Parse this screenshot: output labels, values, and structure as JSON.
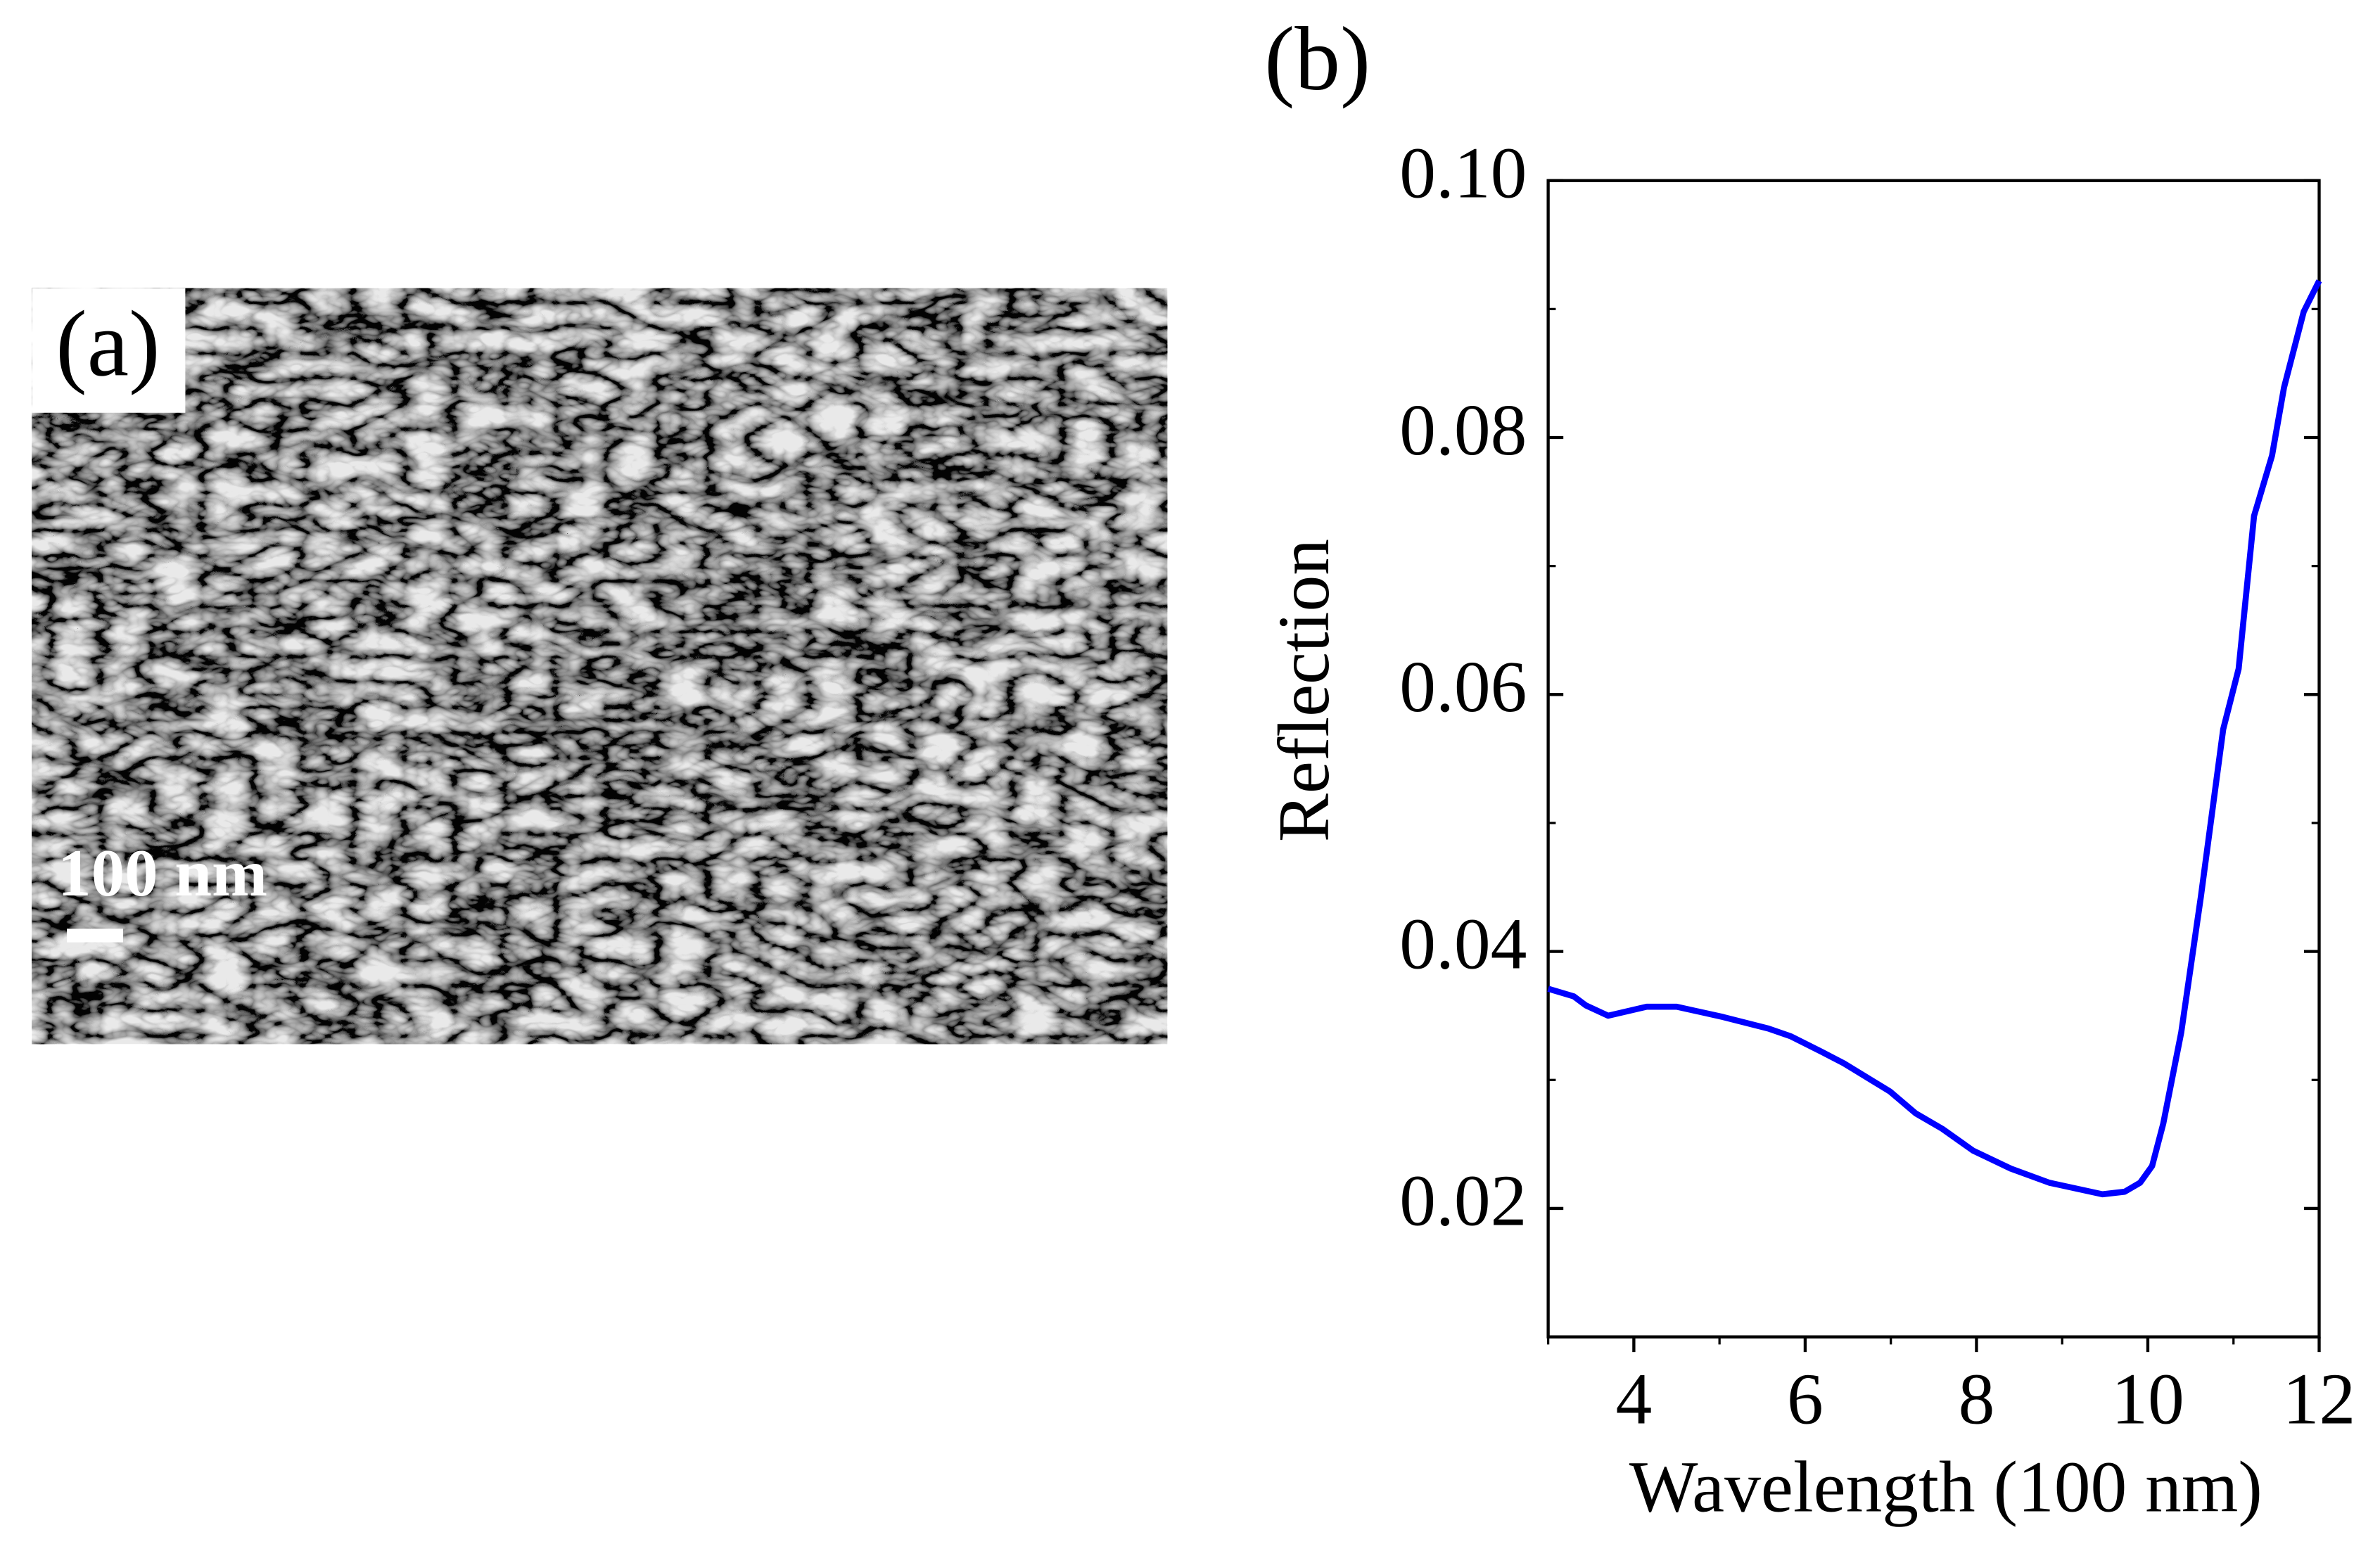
{
  "panel_a": {
    "label": "(a)",
    "scale_bar": "100 nm"
  },
  "chart_data": {
    "type": "line",
    "label": "(b)",
    "xlabel": "Wavelength (100 nm)",
    "ylabel": "Reflection",
    "x": [
      3,
      3.3,
      3.44,
      3.7,
      4.15,
      4.5,
      5.04,
      5.57,
      5.83,
      6.19,
      6.45,
      6.99,
      7.29,
      7.6,
      7.96,
      8.4,
      8.85,
      9.47,
      9.73,
      9.91,
      10.05,
      10.18,
      10.39,
      10.62,
      10.88,
      11.06,
      11.24,
      11.45,
      11.59,
      11.82,
      12
    ],
    "series": [
      {
        "color": "#0000ff",
        "values": [
          0.0371,
          0.0365,
          0.0358,
          0.035,
          0.0357,
          0.0357,
          0.0349,
          0.034,
          0.0334,
          0.0322,
          0.0313,
          0.0291,
          0.0274,
          0.0262,
          0.0245,
          0.0231,
          0.022,
          0.0211,
          0.0213,
          0.022,
          0.0233,
          0.0266,
          0.0337,
          0.0443,
          0.0573,
          0.062,
          0.0739,
          0.0786,
          0.0839,
          0.0898,
          0.0922
        ]
      }
    ],
    "xlim": [
      3,
      12
    ],
    "xticks": [
      4,
      6,
      8,
      10,
      12
    ],
    "ylim": [
      0.01,
      0.1
    ],
    "yticks": [
      0.02,
      0.04,
      0.06,
      0.08,
      {
        "value": 0.1,
        "label": "0.10"
      }
    ]
  }
}
